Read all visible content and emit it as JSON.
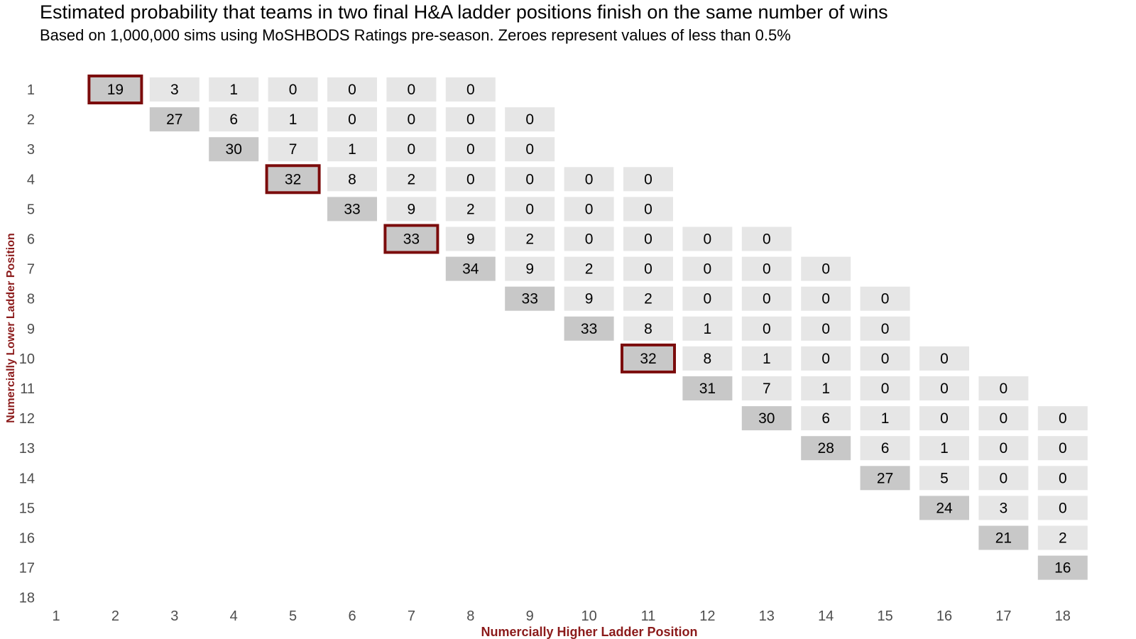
{
  "chart_data": {
    "type": "heatmap",
    "title": "Estimated probability that teams in two final H&A ladder positions finish on the same number of wins",
    "subtitle": "Based on 1,000,000 sims using MoSHBODS Ratings pre-season. Zeroes represent values of less than 0.5%",
    "xlabel": "Numercially Higher Ladder Position",
    "ylabel": "Numercially Lower Ladder Position",
    "x_ticks": [
      1,
      2,
      3,
      4,
      5,
      6,
      7,
      8,
      9,
      10,
      11,
      12,
      13,
      14,
      15,
      16,
      17,
      18
    ],
    "y_ticks": [
      1,
      2,
      3,
      4,
      5,
      6,
      7,
      8,
      9,
      10,
      11,
      12,
      13,
      14,
      15,
      16,
      17,
      18
    ],
    "colors": {
      "adjacent_cell": "#c8c8c8",
      "other_cell": "#e6e6e6",
      "highlight_border": "#7b0c0c",
      "axis_label": "#8b1a1a",
      "tick_text": "#4d4d4d"
    },
    "highlighted": [
      [
        1,
        2
      ],
      [
        4,
        5
      ],
      [
        6,
        7
      ],
      [
        10,
        11
      ]
    ],
    "cells": [
      {
        "y": 1,
        "x": 2,
        "value": 19
      },
      {
        "y": 1,
        "x": 3,
        "value": 3
      },
      {
        "y": 1,
        "x": 4,
        "value": 1
      },
      {
        "y": 1,
        "x": 5,
        "value": 0
      },
      {
        "y": 1,
        "x": 6,
        "value": 0
      },
      {
        "y": 1,
        "x": 7,
        "value": 0
      },
      {
        "y": 1,
        "x": 8,
        "value": 0
      },
      {
        "y": 2,
        "x": 3,
        "value": 27
      },
      {
        "y": 2,
        "x": 4,
        "value": 6
      },
      {
        "y": 2,
        "x": 5,
        "value": 1
      },
      {
        "y": 2,
        "x": 6,
        "value": 0
      },
      {
        "y": 2,
        "x": 7,
        "value": 0
      },
      {
        "y": 2,
        "x": 8,
        "value": 0
      },
      {
        "y": 2,
        "x": 9,
        "value": 0
      },
      {
        "y": 3,
        "x": 4,
        "value": 30
      },
      {
        "y": 3,
        "x": 5,
        "value": 7
      },
      {
        "y": 3,
        "x": 6,
        "value": 1
      },
      {
        "y": 3,
        "x": 7,
        "value": 0
      },
      {
        "y": 3,
        "x": 8,
        "value": 0
      },
      {
        "y": 3,
        "x": 9,
        "value": 0
      },
      {
        "y": 4,
        "x": 5,
        "value": 32
      },
      {
        "y": 4,
        "x": 6,
        "value": 8
      },
      {
        "y": 4,
        "x": 7,
        "value": 2
      },
      {
        "y": 4,
        "x": 8,
        "value": 0
      },
      {
        "y": 4,
        "x": 9,
        "value": 0
      },
      {
        "y": 4,
        "x": 10,
        "value": 0
      },
      {
        "y": 4,
        "x": 11,
        "value": 0
      },
      {
        "y": 5,
        "x": 6,
        "value": 33
      },
      {
        "y": 5,
        "x": 7,
        "value": 9
      },
      {
        "y": 5,
        "x": 8,
        "value": 2
      },
      {
        "y": 5,
        "x": 9,
        "value": 0
      },
      {
        "y": 5,
        "x": 10,
        "value": 0
      },
      {
        "y": 5,
        "x": 11,
        "value": 0
      },
      {
        "y": 6,
        "x": 7,
        "value": 33
      },
      {
        "y": 6,
        "x": 8,
        "value": 9
      },
      {
        "y": 6,
        "x": 9,
        "value": 2
      },
      {
        "y": 6,
        "x": 10,
        "value": 0
      },
      {
        "y": 6,
        "x": 11,
        "value": 0
      },
      {
        "y": 6,
        "x": 12,
        "value": 0
      },
      {
        "y": 6,
        "x": 13,
        "value": 0
      },
      {
        "y": 7,
        "x": 8,
        "value": 34
      },
      {
        "y": 7,
        "x": 9,
        "value": 9
      },
      {
        "y": 7,
        "x": 10,
        "value": 2
      },
      {
        "y": 7,
        "x": 11,
        "value": 0
      },
      {
        "y": 7,
        "x": 12,
        "value": 0
      },
      {
        "y": 7,
        "x": 13,
        "value": 0
      },
      {
        "y": 7,
        "x": 14,
        "value": 0
      },
      {
        "y": 8,
        "x": 9,
        "value": 33
      },
      {
        "y": 8,
        "x": 10,
        "value": 9
      },
      {
        "y": 8,
        "x": 11,
        "value": 2
      },
      {
        "y": 8,
        "x": 12,
        "value": 0
      },
      {
        "y": 8,
        "x": 13,
        "value": 0
      },
      {
        "y": 8,
        "x": 14,
        "value": 0
      },
      {
        "y": 8,
        "x": 15,
        "value": 0
      },
      {
        "y": 9,
        "x": 10,
        "value": 33
      },
      {
        "y": 9,
        "x": 11,
        "value": 8
      },
      {
        "y": 9,
        "x": 12,
        "value": 1
      },
      {
        "y": 9,
        "x": 13,
        "value": 0
      },
      {
        "y": 9,
        "x": 14,
        "value": 0
      },
      {
        "y": 9,
        "x": 15,
        "value": 0
      },
      {
        "y": 10,
        "x": 11,
        "value": 32
      },
      {
        "y": 10,
        "x": 12,
        "value": 8
      },
      {
        "y": 10,
        "x": 13,
        "value": 1
      },
      {
        "y": 10,
        "x": 14,
        "value": 0
      },
      {
        "y": 10,
        "x": 15,
        "value": 0
      },
      {
        "y": 10,
        "x": 16,
        "value": 0
      },
      {
        "y": 11,
        "x": 12,
        "value": 31
      },
      {
        "y": 11,
        "x": 13,
        "value": 7
      },
      {
        "y": 11,
        "x": 14,
        "value": 1
      },
      {
        "y": 11,
        "x": 15,
        "value": 0
      },
      {
        "y": 11,
        "x": 16,
        "value": 0
      },
      {
        "y": 11,
        "x": 17,
        "value": 0
      },
      {
        "y": 12,
        "x": 13,
        "value": 30
      },
      {
        "y": 12,
        "x": 14,
        "value": 6
      },
      {
        "y": 12,
        "x": 15,
        "value": 1
      },
      {
        "y": 12,
        "x": 16,
        "value": 0
      },
      {
        "y": 12,
        "x": 17,
        "value": 0
      },
      {
        "y": 12,
        "x": 18,
        "value": 0
      },
      {
        "y": 13,
        "x": 14,
        "value": 28
      },
      {
        "y": 13,
        "x": 15,
        "value": 6
      },
      {
        "y": 13,
        "x": 16,
        "value": 1
      },
      {
        "y": 13,
        "x": 17,
        "value": 0
      },
      {
        "y": 13,
        "x": 18,
        "value": 0
      },
      {
        "y": 14,
        "x": 15,
        "value": 27
      },
      {
        "y": 14,
        "x": 16,
        "value": 5
      },
      {
        "y": 14,
        "x": 17,
        "value": 0
      },
      {
        "y": 14,
        "x": 18,
        "value": 0
      },
      {
        "y": 15,
        "x": 16,
        "value": 24
      },
      {
        "y": 15,
        "x": 17,
        "value": 3
      },
      {
        "y": 15,
        "x": 18,
        "value": 0
      },
      {
        "y": 16,
        "x": 17,
        "value": 21
      },
      {
        "y": 16,
        "x": 18,
        "value": 2
      },
      {
        "y": 17,
        "x": 18,
        "value": 16
      }
    ]
  }
}
